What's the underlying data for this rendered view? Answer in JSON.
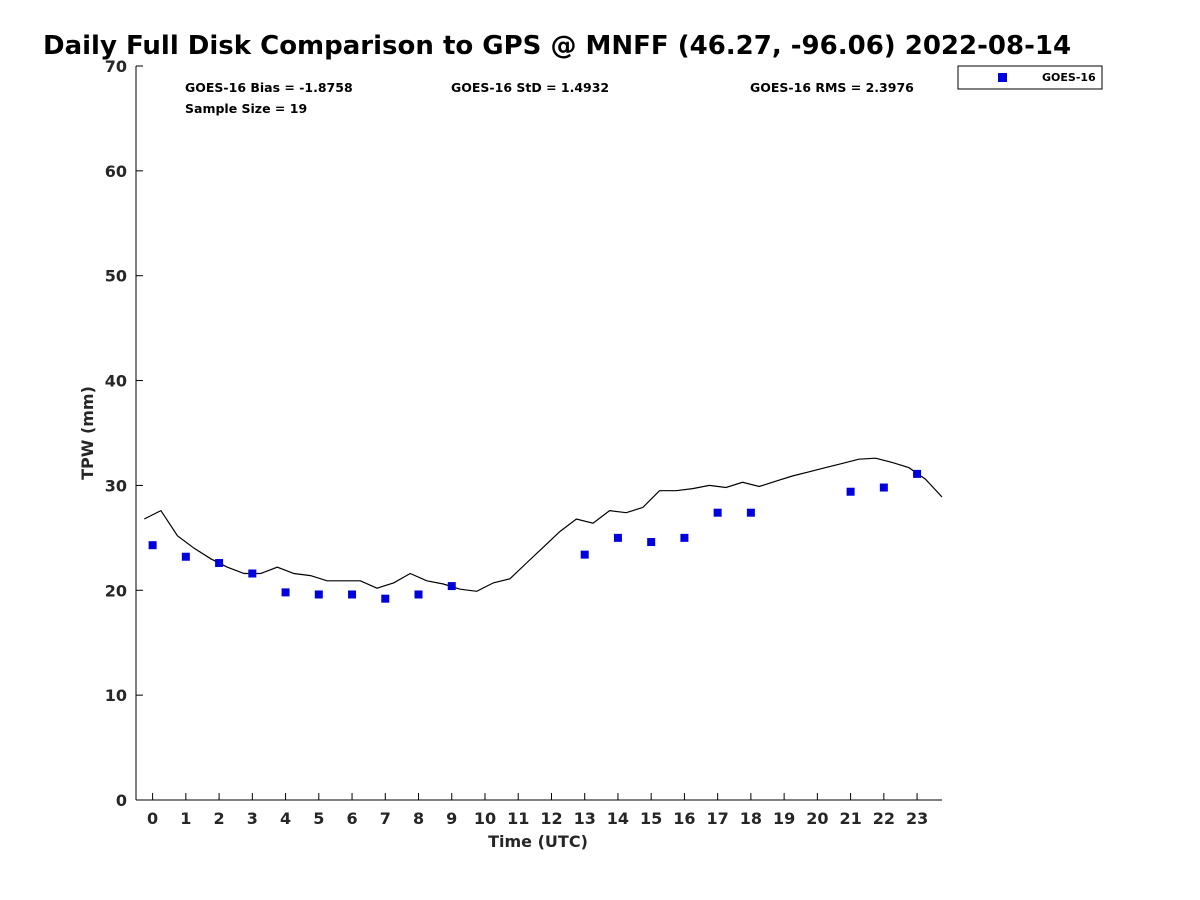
{
  "chart_data": {
    "type": "scatter",
    "title": "Daily Full Disk Comparison to GPS @ MNFF (46.27, -96.06) 2022-08-14",
    "xlabel": "Time (UTC)",
    "ylabel": "TPW (mm)",
    "xlim": [
      -0.5,
      23.75
    ],
    "ylim": [
      0,
      70
    ],
    "x_ticks": [
      "0",
      "1",
      "2",
      "3",
      "4",
      "5",
      "6",
      "7",
      "8",
      "9",
      "10",
      "11",
      "12",
      "13",
      "14",
      "15",
      "16",
      "17",
      "18",
      "19",
      "20",
      "21",
      "22",
      "23"
    ],
    "y_ticks": [
      "0",
      "10",
      "20",
      "30",
      "40",
      "50",
      "60",
      "70"
    ],
    "grid": false,
    "legend_position": "top-right, outside plot",
    "stats": {
      "bias": "GOES-16 Bias = -1.8758",
      "std": "GOES-16 StD = 1.4932",
      "rms": "GOES-16 RMS = 2.3976",
      "sample_size": "Sample Size = 19"
    },
    "series": [
      {
        "name": "GOES-16",
        "kind": "scatter",
        "color": "#0000dd",
        "marker": "square",
        "x": [
          0,
          1,
          2,
          3,
          4,
          5,
          6,
          7,
          8,
          9,
          13,
          14,
          15,
          16,
          17,
          18,
          21,
          22,
          23
        ],
        "y": [
          24.3,
          23.2,
          22.6,
          21.6,
          19.8,
          19.6,
          19.6,
          19.2,
          19.6,
          20.4,
          23.4,
          25.0,
          24.6,
          25.0,
          27.4,
          27.4,
          29.4,
          29.8,
          31.1
        ]
      },
      {
        "kind": "line",
        "color": "#000000",
        "x": [
          -0.25,
          0.25,
          0.75,
          1.25,
          1.75,
          2.25,
          2.75,
          3.25,
          3.75,
          4.25,
          4.75,
          5.25,
          5.75,
          6.25,
          6.75,
          7.25,
          7.75,
          8.25,
          8.75,
          9.25,
          9.75,
          10.25,
          10.75,
          11.25,
          11.75,
          12.25,
          12.75,
          13.25,
          13.75,
          14.25,
          14.75,
          15.25,
          15.75,
          16.25,
          16.75,
          17.25,
          17.75,
          18.25,
          18.75,
          19.25,
          19.75,
          20.25,
          20.75,
          21.25,
          21.75,
          22.25,
          22.75,
          23.25,
          23.75
        ],
        "y": [
          26.8,
          27.6,
          25.2,
          24.0,
          23.0,
          22.2,
          21.6,
          21.6,
          22.2,
          21.6,
          21.4,
          20.9,
          20.9,
          20.9,
          20.2,
          20.7,
          21.6,
          20.9,
          20.6,
          20.1,
          19.9,
          20.7,
          21.1,
          22.6,
          24.1,
          25.6,
          26.8,
          26.4,
          27.6,
          27.4,
          27.9,
          29.5,
          29.5,
          29.7,
          30.0,
          29.8,
          30.3,
          29.9,
          30.4,
          30.9,
          31.3,
          31.7,
          32.1,
          32.5,
          32.6,
          32.2,
          31.7,
          30.6,
          28.9
        ]
      }
    ]
  }
}
